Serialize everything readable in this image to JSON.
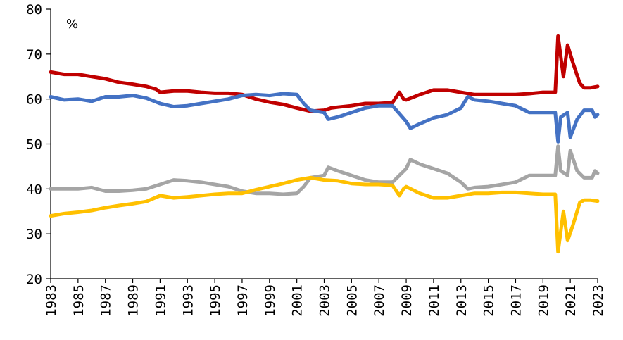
{
  "chart_data": {
    "type": "line",
    "title": "",
    "xlabel": "",
    "ylabel": "%",
    "ylim": [
      20,
      80
    ],
    "xlim": [
      1983,
      2023
    ],
    "yticks": [
      20,
      30,
      40,
      50,
      60,
      70,
      80
    ],
    "xticks": [
      1983,
      1985,
      1987,
      1989,
      1991,
      1993,
      1995,
      1997,
      1999,
      2001,
      2003,
      2005,
      2007,
      2009,
      2011,
      2013,
      2015,
      2017,
      2019,
      2021,
      2023
    ],
    "grid": false,
    "legend": "none",
    "series": [
      {
        "color": "#c00000",
        "points": [
          [
            1983.0,
            66.0
          ],
          [
            1984.0,
            65.5
          ],
          [
            1985.0,
            65.5
          ],
          [
            1986.0,
            65.0
          ],
          [
            1987.0,
            64.5
          ],
          [
            1988.0,
            63.7
          ],
          [
            1989.0,
            63.3
          ],
          [
            1990.0,
            62.8
          ],
          [
            1990.7,
            62.2
          ],
          [
            1991.0,
            61.5
          ],
          [
            1992.0,
            61.8
          ],
          [
            1993.0,
            61.8
          ],
          [
            1994.0,
            61.5
          ],
          [
            1995.0,
            61.3
          ],
          [
            1996.0,
            61.3
          ],
          [
            1997.0,
            61.0
          ],
          [
            1998.0,
            60.0
          ],
          [
            1999.0,
            59.3
          ],
          [
            2000.0,
            58.8
          ],
          [
            2001.0,
            58.0
          ],
          [
            2002.0,
            57.3
          ],
          [
            2003.0,
            57.5
          ],
          [
            2003.5,
            58.0
          ],
          [
            2004.0,
            58.2
          ],
          [
            2005.0,
            58.5
          ],
          [
            2006.0,
            59.0
          ],
          [
            2007.0,
            59.0
          ],
          [
            2008.0,
            59.2
          ],
          [
            2008.5,
            61.5
          ],
          [
            2008.8,
            60.0
          ],
          [
            2009.0,
            59.8
          ],
          [
            2010.0,
            61.0
          ],
          [
            2011.0,
            62.0
          ],
          [
            2012.0,
            62.0
          ],
          [
            2013.0,
            61.5
          ],
          [
            2014.0,
            61.0
          ],
          [
            2015.0,
            61.0
          ],
          [
            2016.0,
            61.0
          ],
          [
            2017.0,
            61.0
          ],
          [
            2018.0,
            61.2
          ],
          [
            2019.0,
            61.5
          ],
          [
            2019.9,
            61.5
          ],
          [
            2020.1,
            74.0
          ],
          [
            2020.5,
            65.0
          ],
          [
            2020.8,
            72.0
          ],
          [
            2021.2,
            68.0
          ],
          [
            2021.7,
            63.5
          ],
          [
            2022.0,
            62.5
          ],
          [
            2022.5,
            62.5
          ],
          [
            2023.0,
            62.8
          ]
        ]
      },
      {
        "color": "#4472c4",
        "points": [
          [
            1983.0,
            60.5
          ],
          [
            1984.0,
            59.8
          ],
          [
            1985.0,
            60.0
          ],
          [
            1986.0,
            59.5
          ],
          [
            1987.0,
            60.5
          ],
          [
            1988.0,
            60.5
          ],
          [
            1989.0,
            60.8
          ],
          [
            1990.0,
            60.2
          ],
          [
            1991.0,
            59.0
          ],
          [
            1992.0,
            58.3
          ],
          [
            1993.0,
            58.5
          ],
          [
            1994.0,
            59.0
          ],
          [
            1995.0,
            59.5
          ],
          [
            1996.0,
            60.0
          ],
          [
            1997.0,
            60.8
          ],
          [
            1998.0,
            61.0
          ],
          [
            1999.0,
            60.8
          ],
          [
            2000.0,
            61.2
          ],
          [
            2001.0,
            61.0
          ],
          [
            2001.5,
            59.0
          ],
          [
            2002.0,
            57.5
          ],
          [
            2003.0,
            57.0
          ],
          [
            2003.3,
            55.5
          ],
          [
            2004.0,
            56.0
          ],
          [
            2005.0,
            57.0
          ],
          [
            2006.0,
            58.0
          ],
          [
            2007.0,
            58.5
          ],
          [
            2008.0,
            58.5
          ],
          [
            2009.0,
            55.0
          ],
          [
            2009.3,
            53.5
          ],
          [
            2010.0,
            54.5
          ],
          [
            2011.0,
            55.8
          ],
          [
            2012.0,
            56.5
          ],
          [
            2013.0,
            58.0
          ],
          [
            2013.5,
            60.5
          ],
          [
            2014.0,
            59.8
          ],
          [
            2015.0,
            59.5
          ],
          [
            2016.0,
            59.0
          ],
          [
            2017.0,
            58.5
          ],
          [
            2018.0,
            57.0
          ],
          [
            2019.0,
            57.0
          ],
          [
            2019.9,
            57.0
          ],
          [
            2020.1,
            50.5
          ],
          [
            2020.3,
            56.0
          ],
          [
            2020.8,
            57.0
          ],
          [
            2021.0,
            51.5
          ],
          [
            2021.5,
            55.5
          ],
          [
            2022.0,
            57.5
          ],
          [
            2022.6,
            57.5
          ],
          [
            2022.8,
            56.0
          ],
          [
            2023.0,
            56.5
          ]
        ]
      },
      {
        "color": "#a5a5a5",
        "points": [
          [
            1983.0,
            40.0
          ],
          [
            1984.0,
            40.0
          ],
          [
            1985.0,
            40.0
          ],
          [
            1986.0,
            40.3
          ],
          [
            1987.0,
            39.5
          ],
          [
            1988.0,
            39.5
          ],
          [
            1989.0,
            39.7
          ],
          [
            1990.0,
            40.0
          ],
          [
            1991.0,
            41.0
          ],
          [
            1992.0,
            42.0
          ],
          [
            1993.0,
            41.8
          ],
          [
            1994.0,
            41.5
          ],
          [
            1995.0,
            41.0
          ],
          [
            1996.0,
            40.5
          ],
          [
            1997.0,
            39.5
          ],
          [
            1998.0,
            39.0
          ],
          [
            1999.0,
            39.0
          ],
          [
            2000.0,
            38.8
          ],
          [
            2001.0,
            39.0
          ],
          [
            2001.5,
            40.5
          ],
          [
            2002.0,
            42.5
          ],
          [
            2003.0,
            43.0
          ],
          [
            2003.3,
            44.8
          ],
          [
            2004.0,
            44.0
          ],
          [
            2005.0,
            43.0
          ],
          [
            2006.0,
            42.0
          ],
          [
            2007.0,
            41.5
          ],
          [
            2008.0,
            41.5
          ],
          [
            2009.0,
            44.5
          ],
          [
            2009.3,
            46.5
          ],
          [
            2010.0,
            45.5
          ],
          [
            2011.0,
            44.5
          ],
          [
            2012.0,
            43.5
          ],
          [
            2013.0,
            41.5
          ],
          [
            2013.5,
            40.0
          ],
          [
            2014.0,
            40.3
          ],
          [
            2015.0,
            40.5
          ],
          [
            2016.0,
            41.0
          ],
          [
            2017.0,
            41.5
          ],
          [
            2018.0,
            43.0
          ],
          [
            2019.0,
            43.0
          ],
          [
            2019.9,
            43.0
          ],
          [
            2020.1,
            49.5
          ],
          [
            2020.3,
            44.0
          ],
          [
            2020.8,
            43.0
          ],
          [
            2021.0,
            48.5
          ],
          [
            2021.5,
            44.0
          ],
          [
            2022.0,
            42.5
          ],
          [
            2022.6,
            42.5
          ],
          [
            2022.8,
            44.0
          ],
          [
            2023.0,
            43.5
          ]
        ]
      },
      {
        "color": "#ffc000",
        "points": [
          [
            1983.0,
            34.0
          ],
          [
            1984.0,
            34.5
          ],
          [
            1985.0,
            34.8
          ],
          [
            1986.0,
            35.2
          ],
          [
            1987.0,
            35.8
          ],
          [
            1988.0,
            36.3
          ],
          [
            1989.0,
            36.7
          ],
          [
            1990.0,
            37.2
          ],
          [
            1991.0,
            38.5
          ],
          [
            1992.0,
            38.0
          ],
          [
            1993.0,
            38.2
          ],
          [
            1994.0,
            38.5
          ],
          [
            1995.0,
            38.8
          ],
          [
            1996.0,
            39.0
          ],
          [
            1997.0,
            39.0
          ],
          [
            1998.0,
            39.8
          ],
          [
            1999.0,
            40.5
          ],
          [
            2000.0,
            41.2
          ],
          [
            2001.0,
            42.0
          ],
          [
            2002.0,
            42.5
          ],
          [
            2003.0,
            42.0
          ],
          [
            2004.0,
            41.8
          ],
          [
            2005.0,
            41.2
          ],
          [
            2006.0,
            41.0
          ],
          [
            2007.0,
            41.0
          ],
          [
            2008.0,
            40.8
          ],
          [
            2008.5,
            38.5
          ],
          [
            2008.8,
            40.0
          ],
          [
            2009.0,
            40.5
          ],
          [
            2010.0,
            39.0
          ],
          [
            2011.0,
            38.0
          ],
          [
            2012.0,
            38.0
          ],
          [
            2013.0,
            38.5
          ],
          [
            2014.0,
            39.0
          ],
          [
            2015.0,
            39.0
          ],
          [
            2016.0,
            39.2
          ],
          [
            2017.0,
            39.2
          ],
          [
            2018.0,
            39.0
          ],
          [
            2019.0,
            38.8
          ],
          [
            2019.9,
            38.8
          ],
          [
            2020.1,
            26.0
          ],
          [
            2020.5,
            35.0
          ],
          [
            2020.8,
            28.5
          ],
          [
            2021.2,
            32.0
          ],
          [
            2021.7,
            37.0
          ],
          [
            2022.0,
            37.5
          ],
          [
            2022.5,
            37.5
          ],
          [
            2023.0,
            37.3
          ]
        ]
      }
    ]
  }
}
